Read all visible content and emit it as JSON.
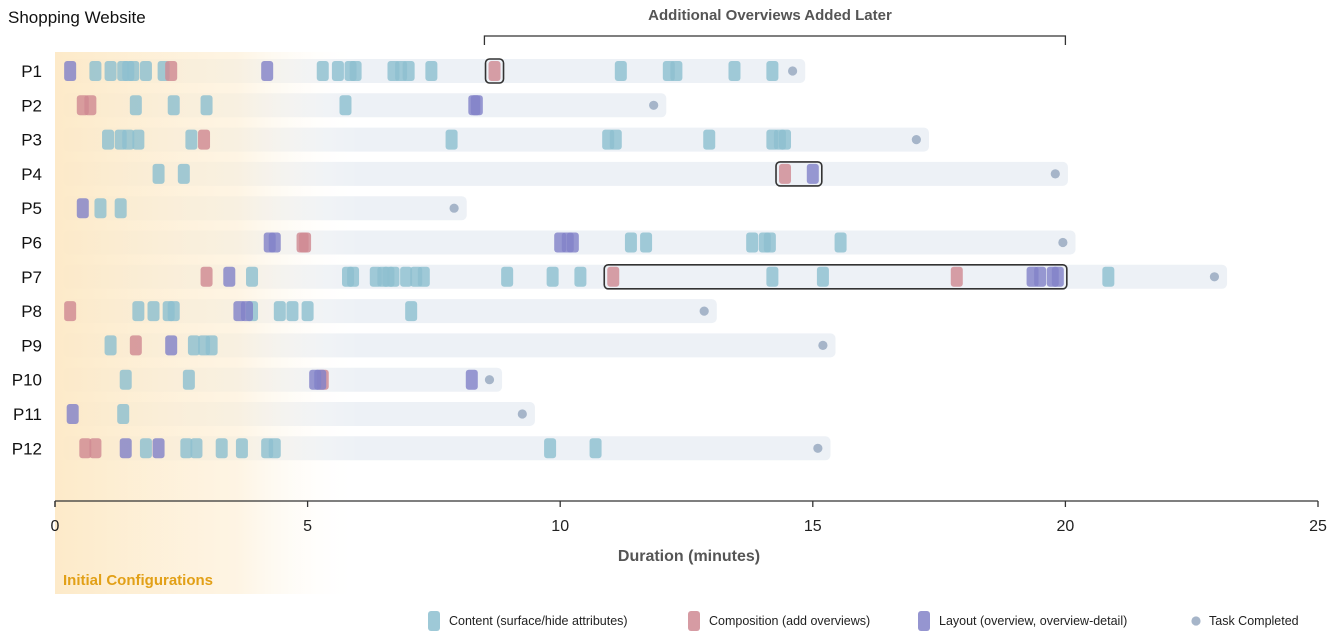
{
  "chart_data": {
    "type": "timeline",
    "title": "Shopping Website",
    "xlabel": "Duration (minutes)",
    "xlim": [
      0,
      25
    ],
    "xticks": [
      0,
      5,
      10,
      15,
      20,
      25
    ],
    "region_label": "Initial Configurations",
    "bracket_label": "Additional Overviews Added Later",
    "bracket_range": [
      8.5,
      20
    ],
    "legend": [
      {
        "key": "content",
        "label": "Content (surface/hide attributes)",
        "color": "#8dbfd0"
      },
      {
        "key": "composition",
        "label": "Composition (add overviews)",
        "color": "#cf8a93"
      },
      {
        "key": "layout",
        "label": "Layout (overview, overview-detail)",
        "color": "#8383c8"
      },
      {
        "key": "completed",
        "label": "Task Completed",
        "color": "#a6b5c9"
      }
    ],
    "participants": [
      {
        "name": "P1",
        "end": 14.6,
        "content": [
          0.8,
          1.1,
          1.35,
          1.45,
          1.55,
          1.8,
          2.15,
          5.3,
          5.6,
          5.85,
          5.95,
          6.7,
          6.85,
          7.0,
          7.45,
          11.2,
          12.15,
          12.3,
          13.45,
          14.2
        ],
        "composition": [
          2.3,
          8.7
        ],
        "layout": [
          0.3,
          4.2
        ],
        "boxes": [
          [
            8.7,
            8.7
          ]
        ]
      },
      {
        "name": "P2",
        "end": 11.85,
        "content": [
          1.6,
          2.35,
          3.0,
          5.75
        ],
        "composition": [
          0.55,
          0.7
        ],
        "layout": [
          8.3,
          8.35
        ],
        "boxes": []
      },
      {
        "name": "P3",
        "end": 17.05,
        "content": [
          1.05,
          1.3,
          1.45,
          1.65,
          2.7,
          7.85,
          10.95,
          11.1,
          12.95,
          14.2,
          14.35,
          14.45
        ],
        "composition": [
          2.95
        ],
        "layout": [],
        "boxes": []
      },
      {
        "name": "P4",
        "end": 19.8,
        "content": [
          2.05,
          2.55
        ],
        "composition": [
          14.45
        ],
        "layout": [
          15.0
        ],
        "boxes": [
          [
            14.45,
            15.0
          ]
        ]
      },
      {
        "name": "P5",
        "end": 7.9,
        "content": [
          0.9,
          1.3
        ],
        "composition": [],
        "layout": [
          0.55
        ],
        "boxes": []
      },
      {
        "name": "P6",
        "end": 19.95,
        "content": [
          11.4,
          11.7,
          13.8,
          14.05,
          14.15,
          15.55
        ],
        "composition": [
          4.9,
          4.95
        ],
        "layout": [
          4.25,
          4.35,
          10.0,
          10.15,
          10.25
        ],
        "boxes": []
      },
      {
        "name": "P7",
        "end": 22.95,
        "content": [
          3.9,
          5.8,
          5.9,
          6.35,
          6.5,
          6.6,
          6.7,
          6.95,
          7.15,
          7.3,
          8.95,
          9.85,
          10.4,
          14.2,
          15.2,
          20.85
        ],
        "composition": [
          3.0,
          11.05,
          17.85
        ],
        "layout": [
          3.45,
          19.35,
          19.5,
          19.75,
          19.85
        ],
        "boxes": [
          [
            11.05,
            19.85
          ]
        ]
      },
      {
        "name": "P8",
        "end": 12.85,
        "content": [
          1.65,
          1.95,
          2.25,
          2.35,
          3.9,
          4.45,
          4.7,
          5.0,
          7.05
        ],
        "composition": [
          0.3
        ],
        "layout": [
          3.65,
          3.8
        ],
        "boxes": []
      },
      {
        "name": "P9",
        "end": 15.2,
        "content": [
          1.1,
          2.75,
          2.95,
          3.1
        ],
        "composition": [
          1.6
        ],
        "layout": [
          2.3
        ],
        "boxes": []
      },
      {
        "name": "P10",
        "end": 8.6,
        "content": [
          1.4,
          2.65
        ],
        "composition": [
          5.3
        ],
        "layout": [
          5.15,
          5.25,
          8.25
        ],
        "boxes": []
      },
      {
        "name": "P11",
        "end": 9.25,
        "content": [
          1.35
        ],
        "composition": [],
        "layout": [
          0.35
        ],
        "boxes": []
      },
      {
        "name": "P12",
        "end": 15.1,
        "content": [
          1.8,
          2.6,
          2.8,
          3.3,
          3.7,
          4.2,
          4.35,
          9.8,
          10.7
        ],
        "composition": [
          0.6,
          0.8
        ],
        "layout": [
          1.4,
          2.05
        ],
        "boxes": []
      }
    ]
  }
}
